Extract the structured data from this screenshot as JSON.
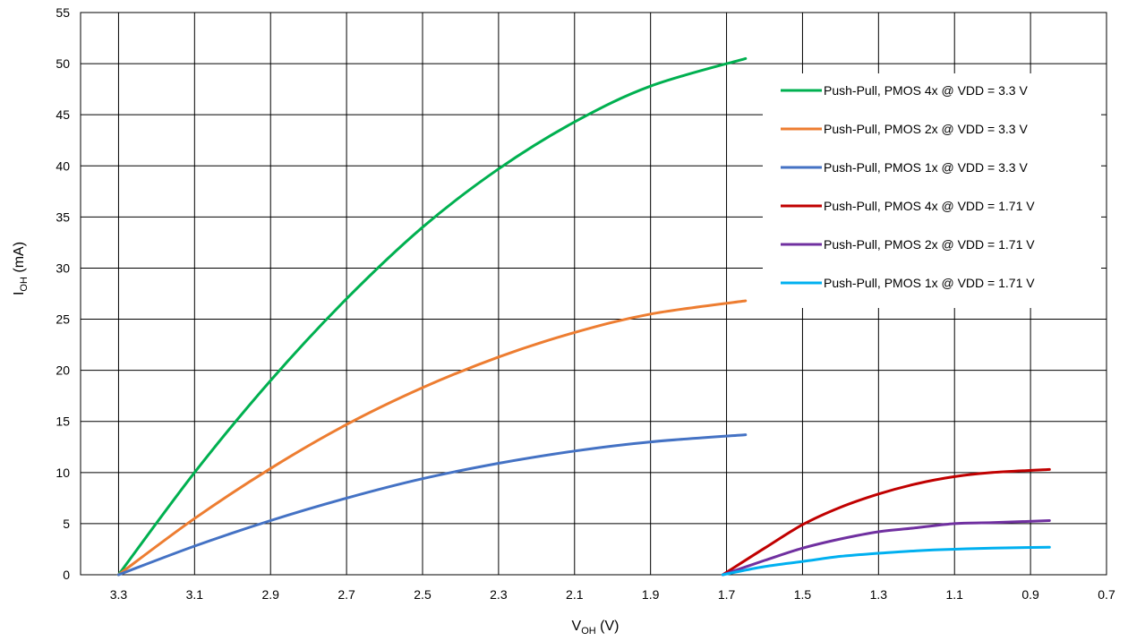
{
  "chart_data": {
    "type": "line",
    "xlabel": {
      "main": "V",
      "sub": "OH",
      "unit": " (V)"
    },
    "ylabel": {
      "main": "I",
      "sub": "OH",
      "unit": " (mA)"
    },
    "xlim": [
      3.4,
      0.7
    ],
    "x_reversed": true,
    "ylim": [
      0,
      55
    ],
    "x_ticks": [
      "3.3",
      "3.1",
      "2.9",
      "2.7",
      "2.5",
      "2.3",
      "2.1",
      "1.9",
      "1.7",
      "1.5",
      "1.3",
      "1.1",
      "0.9",
      "0.7"
    ],
    "y_ticks": [
      "0",
      "5",
      "10",
      "15",
      "20",
      "25",
      "30",
      "35",
      "40",
      "45",
      "50",
      "55"
    ],
    "grid": true,
    "legend_position": "top-right",
    "series": [
      {
        "name": "Push-Pull, PMOS 4x @ VDD = 3.3 V",
        "color": "#00b050",
        "points": [
          [
            3.3,
            0
          ],
          [
            3.1,
            10
          ],
          [
            2.9,
            19
          ],
          [
            2.7,
            27
          ],
          [
            2.5,
            34
          ],
          [
            2.3,
            39.7
          ],
          [
            2.1,
            44.3
          ],
          [
            1.9,
            47.8
          ],
          [
            1.65,
            50.5
          ]
        ]
      },
      {
        "name": "Push-Pull, PMOS 2x @ VDD = 3.3 V",
        "color": "#ed7d31",
        "points": [
          [
            3.3,
            0
          ],
          [
            3.1,
            5.5
          ],
          [
            2.9,
            10.4
          ],
          [
            2.7,
            14.7
          ],
          [
            2.5,
            18.3
          ],
          [
            2.3,
            21.3
          ],
          [
            2.1,
            23.7
          ],
          [
            1.9,
            25.5
          ],
          [
            1.65,
            26.8
          ]
        ]
      },
      {
        "name": "Push-Pull, PMOS 1x @ VDD = 3.3 V",
        "color": "#4472c4",
        "points": [
          [
            3.3,
            0
          ],
          [
            3.1,
            2.8
          ],
          [
            2.9,
            5.3
          ],
          [
            2.7,
            7.5
          ],
          [
            2.5,
            9.4
          ],
          [
            2.3,
            10.9
          ],
          [
            2.1,
            12.1
          ],
          [
            1.9,
            13.0
          ],
          [
            1.65,
            13.7
          ]
        ]
      },
      {
        "name": "Push-Pull, PMOS 4x @ VDD = 1.71 V",
        "color": "#c00000",
        "points": [
          [
            1.71,
            0
          ],
          [
            1.6,
            2.6
          ],
          [
            1.5,
            4.9
          ],
          [
            1.4,
            6.6
          ],
          [
            1.3,
            7.9
          ],
          [
            1.2,
            8.9
          ],
          [
            1.1,
            9.6
          ],
          [
            1.0,
            10.0
          ],
          [
            0.85,
            10.3
          ]
        ]
      },
      {
        "name": "Push-Pull, PMOS 2x @ VDD = 1.71 V",
        "color": "#7030a0",
        "points": [
          [
            1.71,
            0
          ],
          [
            1.6,
            1.4
          ],
          [
            1.5,
            2.6
          ],
          [
            1.4,
            3.5
          ],
          [
            1.3,
            4.2
          ],
          [
            1.2,
            4.6
          ],
          [
            1.1,
            5.0
          ],
          [
            1.0,
            5.1
          ],
          [
            0.85,
            5.3
          ]
        ]
      },
      {
        "name": "Push-Pull, PMOS 1x @ VDD = 1.71 V",
        "color": "#00b0f0",
        "points": [
          [
            1.71,
            0
          ],
          [
            1.6,
            0.8
          ],
          [
            1.5,
            1.3
          ],
          [
            1.4,
            1.8
          ],
          [
            1.3,
            2.1
          ],
          [
            1.2,
            2.35
          ],
          [
            1.1,
            2.5
          ],
          [
            1.0,
            2.6
          ],
          [
            0.85,
            2.7
          ]
        ]
      }
    ]
  }
}
